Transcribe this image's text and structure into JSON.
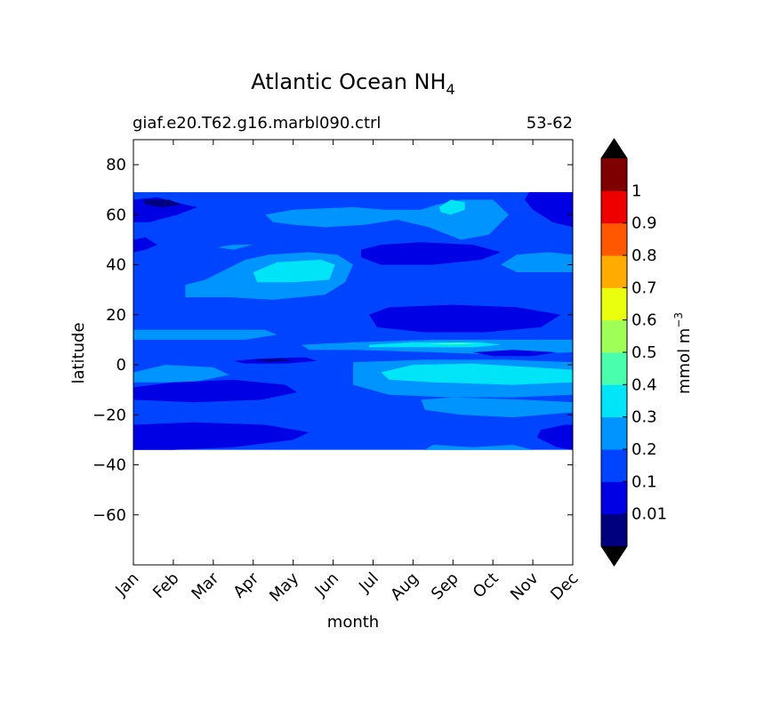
{
  "chart_data": {
    "type": "heatmap",
    "title_main": "Atlantic Ocean NH",
    "title_sub": "4",
    "subtitle_left": "giaf.e20.T62.g16.marbl090.ctrl",
    "subtitle_right": "53-62",
    "xlabel": "month",
    "ylabel": "latitude",
    "x_categories": [
      "Jan",
      "Feb",
      "Mar",
      "Apr",
      "May",
      "Jun",
      "Jul",
      "Aug",
      "Sep",
      "Oct",
      "Nov",
      "Dec"
    ],
    "xlim": [
      1,
      12
    ],
    "ylim": [
      -80,
      90
    ],
    "y_ticks": [
      80,
      60,
      40,
      20,
      0,
      -20,
      -40,
      -60
    ],
    "y_tick_labels": [
      "80",
      "60",
      "40",
      "20",
      "0",
      "−20",
      "−40",
      "−60"
    ],
    "data_lat_range": [
      -34,
      69
    ],
    "colorbar": {
      "label_main": "mmol m",
      "label_sup": "−3",
      "levels": [
        0,
        0.01,
        0.1,
        0.2,
        0.3,
        0.4,
        0.5,
        0.6,
        0.7,
        0.8,
        0.9,
        1,
        1.1
      ],
      "tick_values": [
        0.01,
        0.1,
        0.2,
        0.3,
        0.4,
        0.5,
        0.6,
        0.7,
        0.8,
        0.9,
        1
      ],
      "tick_labels": [
        "0.01",
        "0.1",
        "0.2",
        "0.3",
        "0.4",
        "0.5",
        "0.6",
        "0.7",
        "0.8",
        "0.9",
        "1"
      ],
      "colors": [
        "#00007f",
        "#0000e5",
        "#0044ff",
        "#0094ff",
        "#00e4f7",
        "#49ffad",
        "#9fff56",
        "#e9ff0d",
        "#ffab00",
        "#ff5800",
        "#ee0000",
        "#7f0000"
      ],
      "extend": "both",
      "under_color": "#000000",
      "over_color": "#000000"
    },
    "background_level": 0.15,
    "regions": [
      {
        "value": 0.05,
        "points": [
          [
            1,
            66
          ],
          [
            1.6,
            67
          ],
          [
            2.3,
            64
          ],
          [
            2.6,
            63
          ],
          [
            2.1,
            60
          ],
          [
            1.4,
            57
          ],
          [
            1,
            57
          ]
        ]
      },
      {
        "value": 0.005,
        "points": [
          [
            1.25,
            66
          ],
          [
            1.9,
            66
          ],
          [
            2.2,
            64
          ],
          [
            1.7,
            63
          ],
          [
            1.3,
            64
          ]
        ]
      },
      {
        "value": 0.05,
        "points": [
          [
            10.9,
            69
          ],
          [
            12,
            69
          ],
          [
            12,
            55
          ],
          [
            11.5,
            57
          ],
          [
            11,
            62
          ],
          [
            10.8,
            66
          ]
        ]
      },
      {
        "value": 0.05,
        "points": [
          [
            1,
            50
          ],
          [
            1.3,
            51
          ],
          [
            1.6,
            48
          ],
          [
            1.3,
            46
          ],
          [
            1,
            45
          ]
        ]
      },
      {
        "value": 0.25,
        "points": [
          [
            4.3,
            60
          ],
          [
            5,
            62
          ],
          [
            6.5,
            63
          ],
          [
            7.3,
            62
          ],
          [
            8.2,
            62
          ],
          [
            8.6,
            64
          ],
          [
            9.2,
            66
          ],
          [
            10,
            66
          ],
          [
            10.4,
            60
          ],
          [
            9.9,
            52
          ],
          [
            9.2,
            50
          ],
          [
            8.4,
            55
          ],
          [
            7.6,
            58
          ],
          [
            6.8,
            56
          ],
          [
            5.8,
            55
          ],
          [
            5,
            56
          ],
          [
            4.5,
            57
          ]
        ]
      },
      {
        "value": 0.35,
        "points": [
          [
            8.65,
            63
          ],
          [
            8.95,
            66
          ],
          [
            9.3,
            65
          ],
          [
            9.3,
            62
          ],
          [
            8.95,
            60
          ],
          [
            8.7,
            61
          ]
        ]
      },
      {
        "value": 0.05,
        "points": [
          [
            6.7,
            46
          ],
          [
            7.2,
            48
          ],
          [
            8.2,
            49
          ],
          [
            9.5,
            48
          ],
          [
            10.2,
            45
          ],
          [
            9.7,
            42
          ],
          [
            8.5,
            40
          ],
          [
            7.2,
            40
          ],
          [
            6.7,
            43
          ]
        ]
      },
      {
        "value": 0.25,
        "points": [
          [
            3.3,
            38
          ],
          [
            3.8,
            42
          ],
          [
            4.4,
            44
          ],
          [
            5.4,
            45
          ],
          [
            6.1,
            44
          ],
          [
            6.5,
            40
          ],
          [
            6.3,
            33
          ],
          [
            5.8,
            28
          ],
          [
            4.5,
            26
          ],
          [
            3.4,
            27
          ],
          [
            2.3,
            27
          ],
          [
            2.3,
            32
          ],
          [
            2.8,
            34
          ]
        ]
      },
      {
        "value": 0.35,
        "points": [
          [
            4,
            37
          ],
          [
            4.6,
            41
          ],
          [
            5.7,
            42
          ],
          [
            6.05,
            40
          ],
          [
            5.9,
            34
          ],
          [
            5.0,
            33
          ],
          [
            4.1,
            33
          ]
        ]
      },
      {
        "value": 0.25,
        "points": [
          [
            10.2,
            40
          ],
          [
            10.6,
            44
          ],
          [
            11.4,
            45
          ],
          [
            12,
            44
          ],
          [
            12,
            37
          ],
          [
            11.3,
            37
          ],
          [
            10.6,
            37
          ]
        ]
      },
      {
        "value": 0.25,
        "points": [
          [
            3.1,
            47
          ],
          [
            3.5,
            48
          ],
          [
            4,
            48
          ],
          [
            3.5,
            46
          ]
        ]
      },
      {
        "value": 0.05,
        "points": [
          [
            6.9,
            20
          ],
          [
            7.4,
            23
          ],
          [
            9,
            24
          ],
          [
            10.6,
            23
          ],
          [
            11.7,
            20
          ],
          [
            11.2,
            15
          ],
          [
            9.8,
            13
          ],
          [
            8.3,
            13
          ],
          [
            7.1,
            15
          ]
        ]
      },
      {
        "value": 0.25,
        "points": [
          [
            1,
            14
          ],
          [
            2.6,
            14
          ],
          [
            4.3,
            14
          ],
          [
            4.6,
            12
          ],
          [
            3.8,
            10
          ],
          [
            2.2,
            10
          ],
          [
            1,
            10
          ]
        ]
      },
      {
        "value": 0.25,
        "points": [
          [
            5.2,
            8
          ],
          [
            6.5,
            9
          ],
          [
            8.5,
            10
          ],
          [
            10.7,
            10
          ],
          [
            12,
            10
          ],
          [
            12,
            5
          ],
          [
            10.3,
            4
          ],
          [
            8.5,
            5
          ],
          [
            6.5,
            6
          ],
          [
            5.4,
            6
          ]
        ]
      },
      {
        "value": 0.35,
        "points": [
          [
            6.9,
            8
          ],
          [
            8,
            9
          ],
          [
            9.7,
            9
          ],
          [
            10.2,
            8
          ],
          [
            9.5,
            7
          ],
          [
            8,
            7
          ],
          [
            6.9,
            7
          ]
        ]
      },
      {
        "value": 0.45,
        "points": [
          [
            8.4,
            8.5
          ],
          [
            9.2,
            8.8
          ],
          [
            9.6,
            8.4
          ],
          [
            8.9,
            8.1
          ]
        ]
      },
      {
        "value": 0.05,
        "points": [
          [
            9.5,
            5
          ],
          [
            10.5,
            6
          ],
          [
            11.6,
            5
          ],
          [
            11,
            3.5
          ],
          [
            10,
            3.5
          ]
        ]
      },
      {
        "value": 0.25,
        "points": [
          [
            6.5,
            1
          ],
          [
            8.3,
            2
          ],
          [
            10.3,
            2
          ],
          [
            12,
            1
          ],
          [
            12,
            -12
          ],
          [
            10.5,
            -13
          ],
          [
            9,
            -13
          ],
          [
            7.4,
            -12
          ],
          [
            6.5,
            -8
          ]
        ]
      },
      {
        "value": 0.35,
        "points": [
          [
            7.2,
            -3
          ],
          [
            8,
            0
          ],
          [
            9.5,
            0.5
          ],
          [
            11,
            -1
          ],
          [
            12,
            -2
          ],
          [
            12,
            -7
          ],
          [
            10.5,
            -8
          ],
          [
            8.5,
            -7
          ],
          [
            7.4,
            -6
          ]
        ]
      },
      {
        "value": 0.05,
        "points": [
          [
            3.5,
            1.5
          ],
          [
            4.2,
            2.5
          ],
          [
            5.3,
            3
          ],
          [
            5.6,
            1.5
          ],
          [
            4.8,
            0.5
          ],
          [
            3.8,
            0.5
          ]
        ]
      },
      {
        "value": 0.005,
        "points": [
          [
            4.0,
            2.0
          ],
          [
            4.7,
            2.5
          ],
          [
            5.0,
            1.8
          ],
          [
            4.4,
            1.2
          ]
        ]
      },
      {
        "value": 0.25,
        "points": [
          [
            1,
            -3
          ],
          [
            1.8,
            0
          ],
          [
            3,
            -1
          ],
          [
            3.4,
            -4
          ],
          [
            2.5,
            -7
          ],
          [
            1,
            -7
          ]
        ]
      },
      {
        "value": 0.05,
        "points": [
          [
            1,
            -9
          ],
          [
            2,
            -7
          ],
          [
            3.5,
            -6
          ],
          [
            4.8,
            -8
          ],
          [
            5.1,
            -11
          ],
          [
            4.2,
            -14
          ],
          [
            2.5,
            -15
          ],
          [
            1,
            -14
          ]
        ]
      },
      {
        "value": 0.25,
        "points": [
          [
            8.2,
            -14
          ],
          [
            9,
            -13
          ],
          [
            10.8,
            -14
          ],
          [
            12,
            -15
          ],
          [
            12,
            -19
          ],
          [
            10.5,
            -21
          ],
          [
            9.2,
            -20
          ],
          [
            8.3,
            -18
          ]
        ]
      },
      {
        "value": 0.05,
        "points": [
          [
            1,
            -24
          ],
          [
            2.5,
            -23
          ],
          [
            4.3,
            -24
          ],
          [
            5.4,
            -27
          ],
          [
            5,
            -30
          ],
          [
            3.5,
            -33
          ],
          [
            2,
            -34
          ],
          [
            1,
            -34
          ]
        ]
      },
      {
        "value": 0.05,
        "points": [
          [
            11.2,
            -26
          ],
          [
            11.8,
            -24
          ],
          [
            12,
            -24
          ],
          [
            12,
            -34
          ],
          [
            11.6,
            -33
          ],
          [
            11.1,
            -29
          ]
        ]
      },
      {
        "value": 0.25,
        "points": [
          [
            8.5,
            -32
          ],
          [
            9.5,
            -33
          ],
          [
            10.5,
            -32
          ],
          [
            11,
            -34
          ],
          [
            8.3,
            -34
          ]
        ]
      }
    ]
  }
}
